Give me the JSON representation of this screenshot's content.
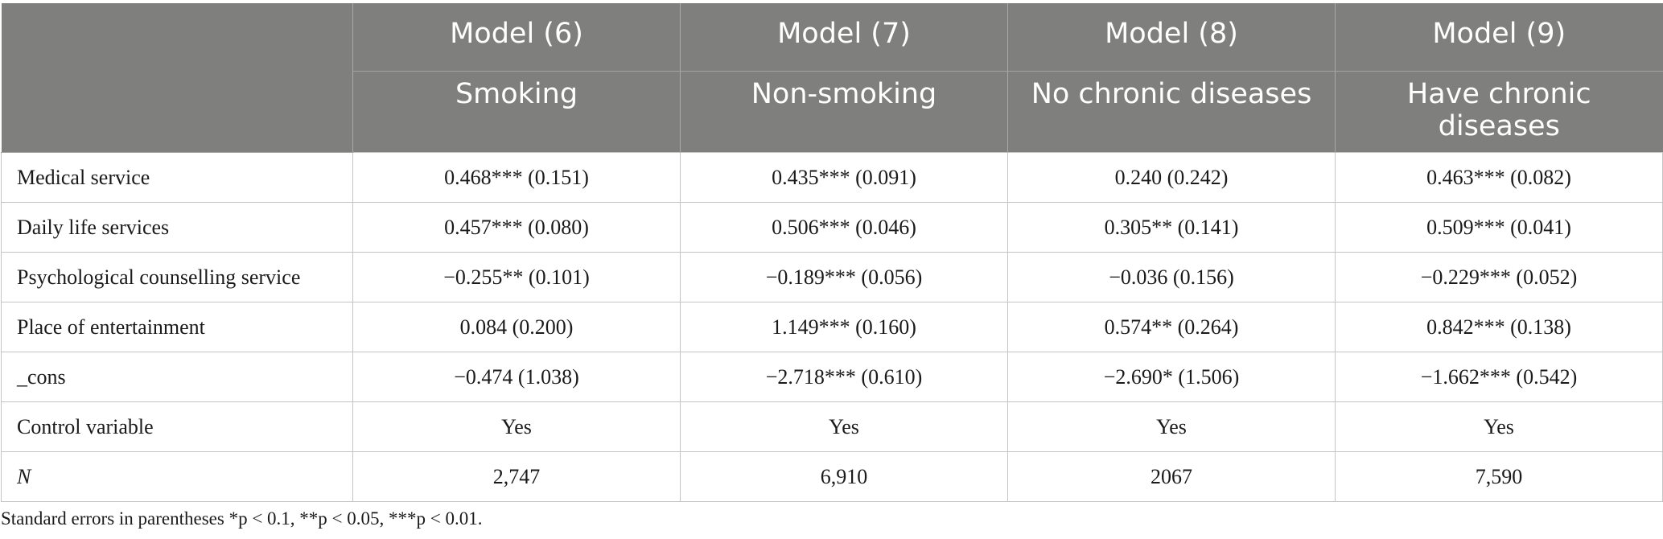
{
  "table": {
    "models": [
      {
        "model": "Model (6)",
        "group": "Smoking"
      },
      {
        "model": "Model (7)",
        "group": "Non-smoking"
      },
      {
        "model": "Model (8)",
        "group": "No chronic diseases"
      },
      {
        "model": "Model (9)",
        "group": "Have chronic diseases"
      }
    ],
    "rows": [
      {
        "label": "Medical service",
        "cells": [
          "0.468*** (0.151)",
          "0.435*** (0.091)",
          "0.240 (0.242)",
          "0.463*** (0.082)"
        ]
      },
      {
        "label": "Daily life services",
        "cells": [
          "0.457*** (0.080)",
          "0.506*** (0.046)",
          "0.305** (0.141)",
          "0.509*** (0.041)"
        ]
      },
      {
        "label": "Psychological counselling service",
        "cells": [
          "−0.255** (0.101)",
          "−0.189*** (0.056)",
          "−0.036 (0.156)",
          "−0.229*** (0.052)"
        ]
      },
      {
        "label": "Place of entertainment",
        "cells": [
          "0.084 (0.200)",
          "1.149*** (0.160)",
          "0.574** (0.264)",
          "0.842*** (0.138)"
        ]
      },
      {
        "label": "_cons",
        "cells": [
          "−0.474 (1.038)",
          "−2.718*** (0.610)",
          "−2.690* (1.506)",
          "−1.662*** (0.542)"
        ]
      },
      {
        "label": "Control variable",
        "cells": [
          "Yes",
          "Yes",
          "Yes",
          "Yes"
        ]
      },
      {
        "label": "N",
        "cells": [
          "2,747",
          "6,910",
          "2067",
          "7,590"
        ]
      }
    ]
  },
  "footnote": "Standard errors in parentheses *p < 0.1, **p < 0.05, ***p < 0.01."
}
